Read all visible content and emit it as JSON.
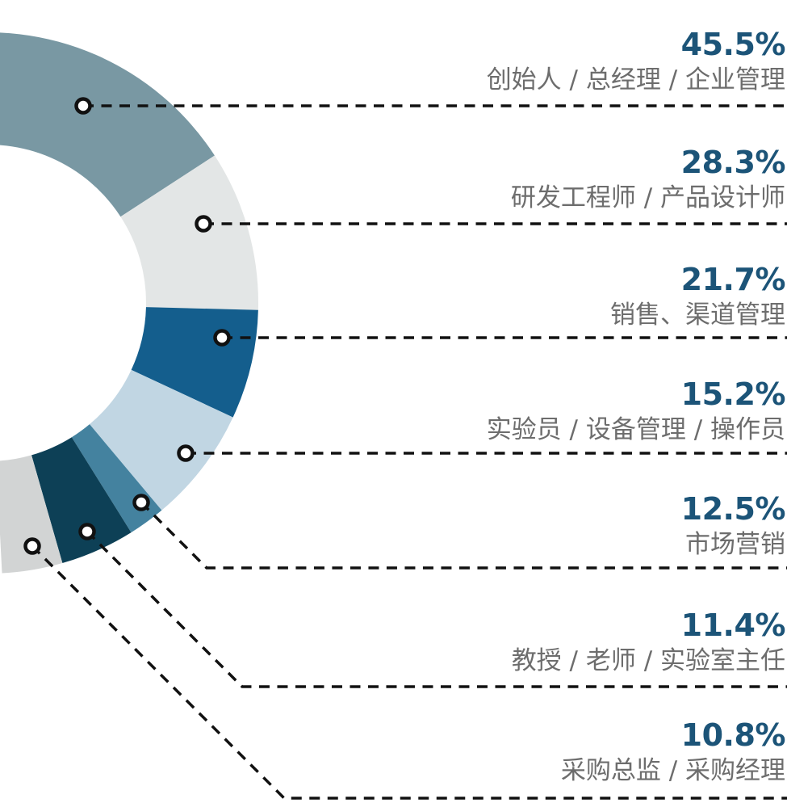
{
  "chart_data": {
    "type": "pie",
    "subtype": "donut-partial-offscreen-left",
    "legend_position": "right",
    "series": [
      {
        "value": 45.5,
        "pct_display": "45.5%",
        "label": "创始人 / 总经理 / 企业管理",
        "color": "#7998a3"
      },
      {
        "value": 28.3,
        "pct_display": "28.3%",
        "label": "研发工程师 / 产品设计师",
        "color": "#e3e6e6"
      },
      {
        "value": 21.7,
        "pct_display": "21.7%",
        "label": "销售、渠道管理",
        "color": "#145e8d"
      },
      {
        "value": 15.2,
        "pct_display": "15.2%",
        "label": "实验员 / 设备管理 / 操作员",
        "color": "#c1d6e3"
      },
      {
        "value": 12.5,
        "pct_display": "12.5%",
        "label": "市场营销",
        "color": "#44829f"
      },
      {
        "value": 11.4,
        "pct_display": "11.4%",
        "label": "教授 / 老师 / 实验室主任",
        "color": "#0d4056"
      },
      {
        "value": 10.8,
        "pct_display": "10.8%",
        "label": "采购总监 / 采购经理",
        "color": "#d2d4d4"
      }
    ],
    "colors": {
      "percent_text": "#1c5478",
      "label_text": "#6d6d6d",
      "leader_line": "#111111",
      "marker_fill": "#ffffff",
      "background": "#ffffff"
    }
  }
}
